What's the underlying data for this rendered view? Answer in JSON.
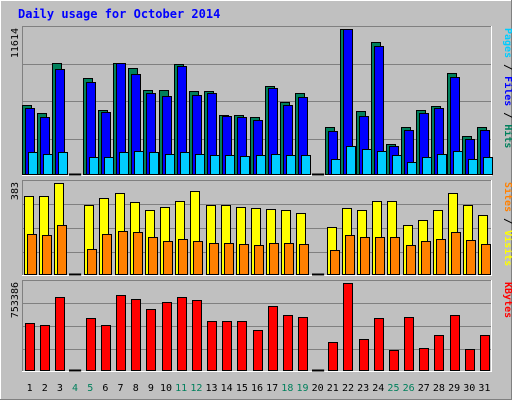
{
  "chart_data": {
    "type": "bar",
    "title": "Daily usage for October 2014",
    "categories": [
      "1",
      "2",
      "3",
      "4",
      "5",
      "6",
      "7",
      "8",
      "9",
      "10",
      "11",
      "12",
      "13",
      "14",
      "15",
      "16",
      "17",
      "18",
      "19",
      "20",
      "21",
      "22",
      "23",
      "24",
      "25",
      "26",
      "27",
      "28",
      "29",
      "30",
      "31"
    ],
    "weekend_days": [
      "4",
      "5",
      "11",
      "12",
      "18",
      "19",
      "25",
      "26"
    ],
    "panels": [
      {
        "id": "hits-files-pages",
        "max_label": "11614",
        "ymax": 11614,
        "series": [
          {
            "name": "Hits",
            "color": "#00805c",
            "values": [
              5600,
              4900,
              8900,
              0,
              7700,
              5200,
              8900,
              8500,
              6800,
              6800,
              8800,
              6700,
              6700,
              4800,
              4800,
              4600,
              7100,
              5800,
              6500,
              0,
              3800,
              11614,
              5100,
              10600,
              2500,
              3800,
              5200,
              5500,
              8100,
              3100,
              3800
            ]
          },
          {
            "name": "Files",
            "color": "#0000ff",
            "values": [
              5300,
              4600,
              8400,
              0,
              7400,
              5000,
              8900,
              8000,
              6500,
              6300,
              8700,
              6400,
              6500,
              4700,
              4600,
              4400,
              6900,
              5600,
              6200,
              0,
              3500,
              11614,
              4700,
              10300,
              2300,
              3600,
              4900,
              5300,
              7800,
              2900,
              3600
            ]
          },
          {
            "name": "Pages",
            "color": "#00ccff",
            "values": [
              1800,
              1700,
              1800,
              0,
              1400,
              1400,
              1800,
              1900,
              1800,
              1700,
              1800,
              1700,
              1600,
              1600,
              1500,
              1600,
              1700,
              1600,
              1600,
              0,
              1300,
              2300,
              2100,
              1900,
              1600,
              1000,
              1400,
              1700,
              1900,
              1300,
              1400
            ]
          }
        ]
      },
      {
        "id": "visits-sites",
        "max_label": "383",
        "ymax": 383,
        "series": [
          {
            "name": "Visits",
            "color": "#ffff00",
            "values": [
              330,
              330,
              383,
              0,
              290,
              320,
              340,
              305,
              270,
              285,
              310,
              350,
              290,
              290,
              285,
              280,
              275,
              270,
              260,
              0,
              200,
              280,
              270,
              310,
              310,
              210,
              230,
              270,
              340,
              290,
              250
            ]
          },
          {
            "name": "Sites",
            "color": "#ff8000",
            "values": [
              170,
              165,
              210,
              0,
              110,
              170,
              185,
              180,
              160,
              140,
              150,
              140,
              135,
              135,
              130,
              125,
              135,
              135,
              130,
              0,
              105,
              165,
              160,
              160,
              160,
              125,
              140,
              150,
              180,
              145,
              130
            ]
          }
        ]
      },
      {
        "id": "kbytes",
        "max_label": "753386",
        "ymax": 753386,
        "series": [
          {
            "name": "KBytes",
            "color": "#ff0000",
            "values": [
              410000,
              390000,
              630000,
              0,
              450000,
              390000,
              650000,
              620000,
              530000,
              590000,
              630000,
              610000,
              430000,
              430000,
              430000,
              350000,
              560000,
              480000,
              460000,
              0,
              250000,
              753386,
              270000,
              450000,
              180000,
              460000,
              200000,
              310000,
              480000,
              190000,
              310000
            ]
          }
        ]
      }
    ],
    "axis_side_labels": [
      {
        "text": "Pages",
        "color": "#00ccff"
      },
      {
        "text": " / ",
        "color": "#000000"
      },
      {
        "text": "Files",
        "color": "#0000ff"
      },
      {
        "text": " / ",
        "color": "#000000"
      },
      {
        "text": "Hits",
        "color": "#00805c"
      }
    ],
    "axis_side_labels_2": [
      {
        "text": "Sites",
        "color": "#ff8000"
      },
      {
        "text": " / ",
        "color": "#000000"
      },
      {
        "text": "Visits",
        "color": "#ffff00"
      }
    ],
    "axis_side_labels_3": [
      {
        "text": "KBytes",
        "color": "#ff0000"
      }
    ],
    "colors": {
      "background": "#c0c0c0",
      "title": "#0000ff",
      "weekday_label": "#000000",
      "weekend_label": "#00805c"
    }
  }
}
